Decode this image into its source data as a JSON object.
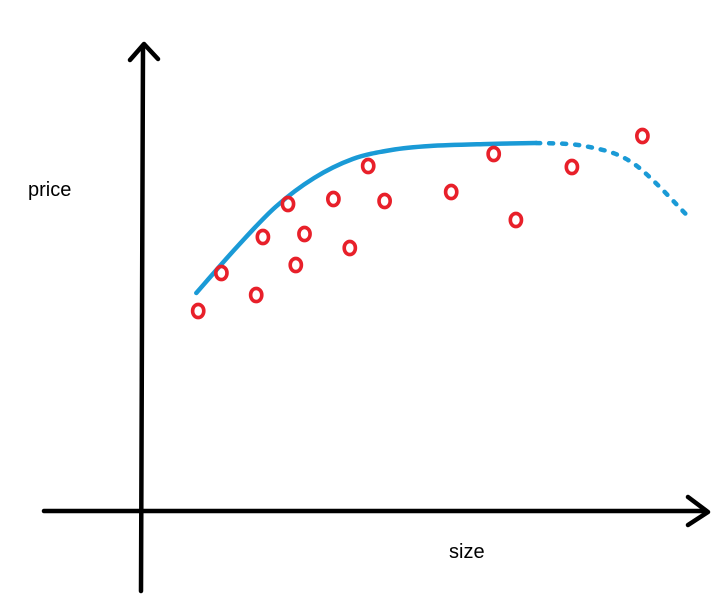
{
  "chart_data": {
    "type": "scatter",
    "title": "",
    "xlabel": "size",
    "ylabel": "price",
    "grid": false,
    "axis_ticks": false,
    "points": [
      {
        "x": 60,
        "y": 200
      },
      {
        "x": 84,
        "y": 238
      },
      {
        "x": 120,
        "y": 216
      },
      {
        "x": 127,
        "y": 274
      },
      {
        "x": 153,
        "y": 307
      },
      {
        "x": 161,
        "y": 246
      },
      {
        "x": 170,
        "y": 277
      },
      {
        "x": 200,
        "y": 312
      },
      {
        "x": 217,
        "y": 263
      },
      {
        "x": 236,
        "y": 345
      },
      {
        "x": 253,
        "y": 310
      },
      {
        "x": 322,
        "y": 319
      },
      {
        "x": 366,
        "y": 357
      },
      {
        "x": 389,
        "y": 291
      },
      {
        "x": 447,
        "y": 344
      },
      {
        "x": 520,
        "y": 375
      }
    ],
    "fit_curve": [
      {
        "x": 58,
        "y": 218
      },
      {
        "x": 100,
        "y": 264
      },
      {
        "x": 140,
        "y": 304
      },
      {
        "x": 180,
        "y": 333
      },
      {
        "x": 220,
        "y": 352
      },
      {
        "x": 260,
        "y": 361
      },
      {
        "x": 300,
        "y": 365
      },
      {
        "x": 360,
        "y": 367
      },
      {
        "x": 410,
        "y": 368
      }
    ],
    "extrapolation": [
      {
        "x": 410,
        "y": 368
      },
      {
        "x": 460,
        "y": 365
      },
      {
        "x": 510,
        "y": 348
      },
      {
        "x": 566,
        "y": 296
      }
    ],
    "xlim": [
      -20,
      590
    ],
    "ylim": [
      0,
      470
    ],
    "colors": {
      "points": "#e8202a",
      "fit": "#1a9ad6",
      "axes": "#000000"
    }
  }
}
